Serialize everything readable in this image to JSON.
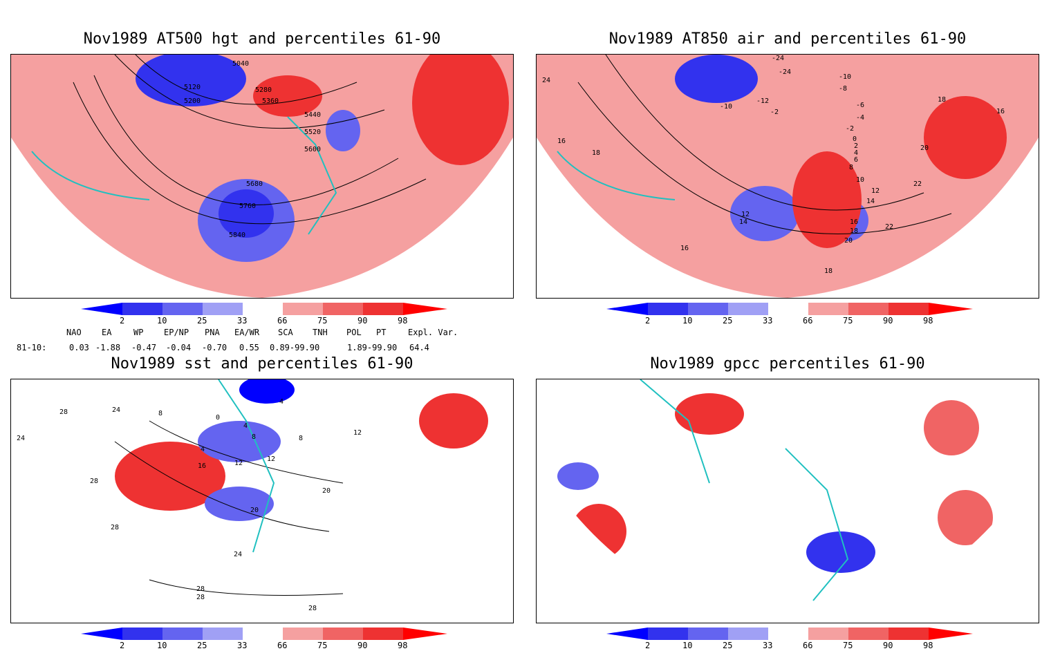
{
  "panels": {
    "hgt": {
      "title": "Nov1989 AT500 hgt and percentiles 61-90",
      "labels": [
        "5040",
        "5120",
        "5200",
        "5280",
        "5360",
        "5440",
        "5520",
        "5600",
        "5680",
        "5760",
        "5840"
      ]
    },
    "air": {
      "title": "Nov1989 AT850 air and percentiles 61-90",
      "labels": [
        "-24",
        "-24",
        "-10",
        "-8",
        "-10",
        "-12",
        "-2",
        "-6",
        "-4",
        "-2",
        "0",
        "2",
        "4",
        "6",
        "8",
        "10",
        "12",
        "14",
        "16",
        "18",
        "20",
        "22",
        "16",
        "18",
        "16",
        "16",
        "18",
        "20",
        "18",
        "14",
        "12",
        "22",
        "24"
      ]
    },
    "sst": {
      "title": "Nov1989 sst and percentiles 61-90",
      "labels": [
        "24",
        "28",
        "24",
        "8",
        "0",
        "4",
        "4",
        "8",
        "12",
        "16",
        "20",
        "20",
        "24",
        "28",
        "28",
        "28",
        "28",
        "28",
        "8",
        "12",
        "12",
        "4"
      ]
    },
    "gpcc": {
      "title": "Nov1989 gpcc percentiles 61-90"
    }
  },
  "colorbar": {
    "ticks": [
      "2",
      "10",
      "25",
      "33",
      "66",
      "75",
      "90",
      "98"
    ],
    "colors": [
      "#0000ff",
      "#3232ee",
      "#6464f0",
      "#a0a0f5",
      "#ffffff",
      "#f5a0a0",
      "#f06464",
      "#ee3232",
      "#ff0000"
    ]
  },
  "indices": {
    "row_label": "81-10:",
    "names": [
      "NAO",
      "EA",
      "WP",
      "EP/NP",
      "PNA",
      "EA/WR",
      "SCA",
      "TNH",
      "POL",
      "PT",
      "Expl. Var."
    ],
    "values": [
      "0.03",
      "-1.88",
      "-0.47",
      "-0.04",
      "-0.70",
      "0.55",
      "0.89-99.90",
      "",
      "1.89-99.90",
      "",
      "64.4"
    ]
  },
  "colors": {
    "coast": "#20c0c0",
    "contour": "#000000",
    "red_light": "#f5a0a0",
    "red_mid": "#f06464",
    "red_dark": "#ee3232",
    "blue_light": "#a0a0f5",
    "blue_mid": "#6464f0",
    "blue_dark": "#3232ee"
  }
}
